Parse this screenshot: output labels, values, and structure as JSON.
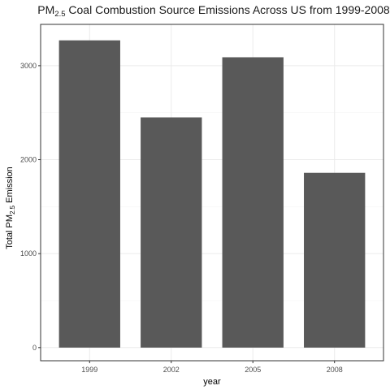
{
  "chart_data": {
    "type": "bar",
    "title": {
      "prefix": "PM",
      "subscript": "2.5",
      "suffix": " Coal Combustion Source Emissions Across US from 1999-2008"
    },
    "xlabel": "year",
    "ylabel": {
      "prefix": "Total PM",
      "subscript": "2.5",
      "suffix": " Emission"
    },
    "categories": [
      "1999",
      "2002",
      "2005",
      "2008"
    ],
    "values": [
      3270,
      2450,
      3090,
      1860
    ],
    "yticks": [
      0,
      1000,
      2000,
      3000
    ],
    "ylim": [
      -140,
      3440
    ],
    "grid": true,
    "legend": "none",
    "colors": {
      "bar": "#595959",
      "panel_border": "#333333",
      "grid_major": "#ebebeb",
      "grid_minor": "#f5f5f5"
    }
  }
}
